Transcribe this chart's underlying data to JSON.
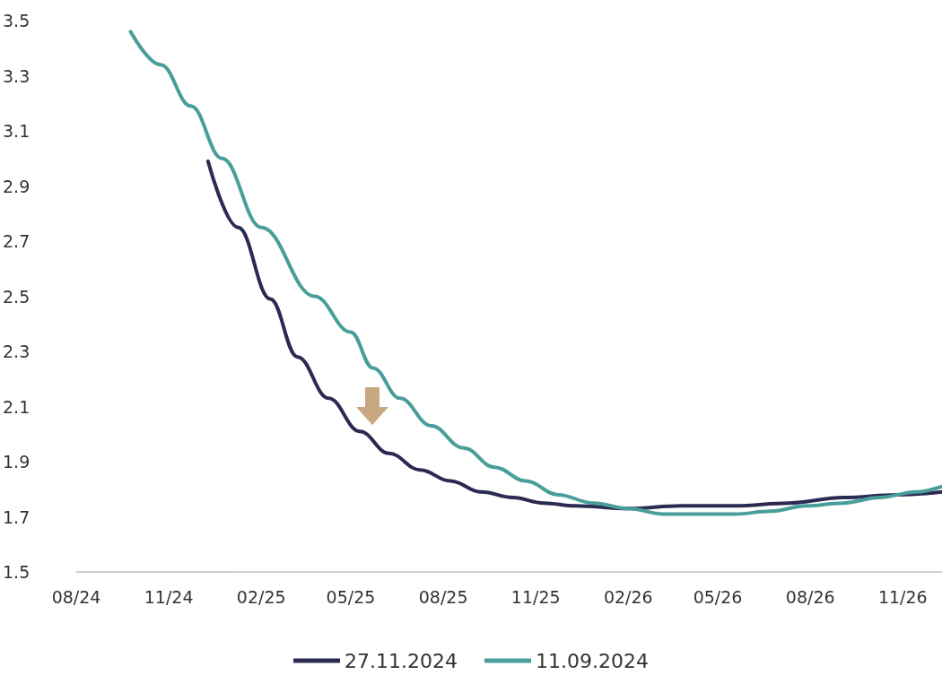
{
  "chart_data": {
    "type": "line",
    "series": [
      {
        "name": "27.11.2024",
        "color": "#2b2a52",
        "x": [
          "2024-12-10",
          "2025-01-09",
          "2025-02-10",
          "2025-03-09",
          "2025-04-09",
          "2025-05-10",
          "2025-06-08",
          "2025-07-09",
          "2025-08-08",
          "2025-09-08",
          "2025-10-09",
          "2025-11-09",
          "2025-12-10",
          "2026-02-01",
          "2026-03-26",
          "2026-05-18",
          "2026-07-11",
          "2026-09-03",
          "2026-10-27",
          "2026-12-10"
        ],
        "values": [
          2.99,
          2.75,
          2.49,
          2.28,
          2.13,
          2.01,
          1.93,
          1.87,
          1.83,
          1.79,
          1.77,
          1.75,
          1.74,
          1.73,
          1.74,
          1.74,
          1.75,
          1.77,
          1.78,
          1.79
        ]
      },
      {
        "name": "11.09.2024",
        "color": "#4a9e9a",
        "x": [
          "2024-09-24",
          "2024-10-24",
          "2024-11-23",
          "2024-12-24",
          "2025-02-01",
          "2025-03-26",
          "2025-05-01",
          "2025-05-23",
          "2025-06-19",
          "2025-07-20",
          "2025-08-21",
          "2025-09-21",
          "2025-10-22",
          "2025-11-23",
          "2025-12-28",
          "2026-02-01",
          "2026-03-08",
          "2026-04-13",
          "2026-05-18",
          "2026-06-23",
          "2026-07-28",
          "2026-09-03",
          "2026-10-09",
          "2026-11-14",
          "2026-12-10"
        ],
        "values": [
          3.46,
          3.34,
          3.19,
          3.0,
          2.75,
          2.5,
          2.37,
          2.24,
          2.13,
          2.03,
          1.95,
          1.88,
          1.83,
          1.78,
          1.75,
          1.73,
          1.71,
          1.71,
          1.71,
          1.72,
          1.74,
          1.75,
          1.77,
          1.79,
          1.81
        ]
      }
    ],
    "xlim": [
      "2024-08-01",
      "2026-12-10"
    ],
    "xticks": [
      {
        "value": "2024-08-01",
        "label": "08/24"
      },
      {
        "value": "2024-11-01",
        "label": "11/24"
      },
      {
        "value": "2025-02-01",
        "label": "02/25"
      },
      {
        "value": "2025-05-01",
        "label": "05/25"
      },
      {
        "value": "2025-08-01",
        "label": "08/25"
      },
      {
        "value": "2025-11-01",
        "label": "11/25"
      },
      {
        "value": "2026-02-01",
        "label": "02/26"
      },
      {
        "value": "2026-05-01",
        "label": "05/26"
      },
      {
        "value": "2026-08-01",
        "label": "08/26"
      },
      {
        "value": "2026-11-01",
        "label": "11/26"
      }
    ],
    "ylim": [
      1.5,
      3.5
    ],
    "yticks": [
      1.5,
      1.7,
      1.9,
      2.1,
      2.3,
      2.5,
      2.7,
      2.9,
      3.1,
      3.3,
      3.5
    ],
    "grid": false,
    "legend": "bottom",
    "marker": "none",
    "line_style": "solid"
  }
}
